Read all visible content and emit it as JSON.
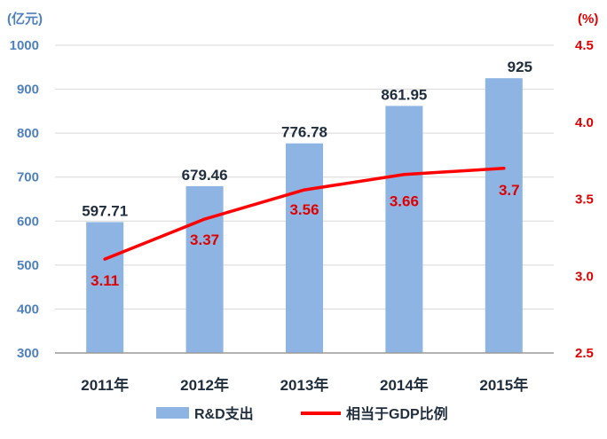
{
  "chart_data": {
    "type": "bar",
    "categories": [
      "2011年",
      "2012年",
      "2013年",
      "2014年",
      "2015年"
    ],
    "series": [
      {
        "name": "R&D支出",
        "type": "bar",
        "axis": "left",
        "values": [
          597.71,
          679.46,
          776.78,
          861.95,
          925
        ],
        "labels": [
          "597.71",
          "679.46",
          "776.78",
          "861.95",
          "925"
        ]
      },
      {
        "name": "相当于GDP比例",
        "type": "line",
        "axis": "right",
        "values": [
          3.11,
          3.37,
          3.56,
          3.66,
          3.7
        ],
        "labels": [
          "3.11",
          "3.37",
          "3.56",
          "3.66",
          "3.7"
        ]
      }
    ],
    "y_left": {
      "unit": "(亿元)",
      "range": [
        300,
        1000
      ],
      "ticks": [
        "300",
        "400",
        "500",
        "600",
        "700",
        "800",
        "900",
        "1000"
      ]
    },
    "y_right": {
      "unit": "(%)",
      "range": [
        2.5,
        4.5
      ],
      "ticks": [
        "2.5",
        "3.0",
        "3.5",
        "4.0",
        "4.5"
      ]
    },
    "grid": true,
    "legend": "bottom",
    "colors": {
      "bar": "#8eb4e3",
      "line": "#ff0000",
      "left_axis_text": "#4f81bd",
      "right_axis_text": "#e00000",
      "grid": "#d9d9d9"
    }
  }
}
